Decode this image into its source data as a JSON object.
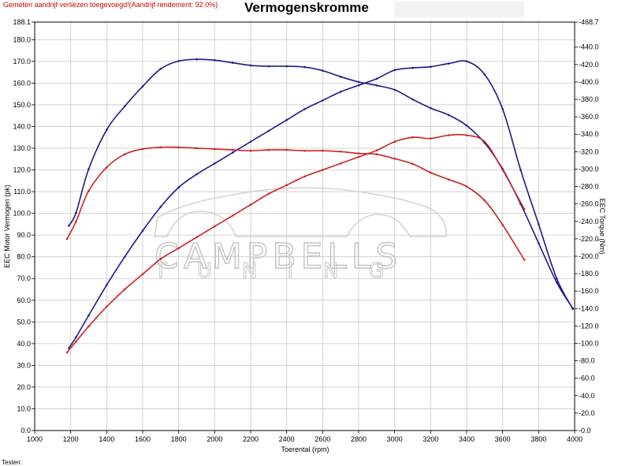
{
  "header": {
    "notice": "Gemeten aandrijf verliezen toegevoegd!(Aandrijf rendement: 92.0%)",
    "title": "Vermogenskromme"
  },
  "footer": {
    "text": "Testen:"
  },
  "watermark": {
    "line1": "CAMPBELLS",
    "line2": "TUNING"
  },
  "colors": {
    "series_blue": "#1a1a8c",
    "series_red": "#cc2222",
    "grid": "#c8c8c8"
  },
  "chart_data": {
    "type": "line",
    "xlabel": "Toerental (rpm)",
    "ylabel_left": "EEC Motor Vermogen (pk)",
    "ylabel_right": "EEC Torque (Nm)",
    "xlim": [
      1000,
      4000
    ],
    "ylim_left": [
      0,
      188.1
    ],
    "ylim_right": [
      0,
      468.7
    ],
    "x_ticks": [
      "1000",
      "1200",
      "1400",
      "1600",
      "1800",
      "2000",
      "2200",
      "2400",
      "2600",
      "2800",
      "3000",
      "3200",
      "3400",
      "3600",
      "3800",
      "4000"
    ],
    "y_left_ticks": [
      "0.0",
      "10.0",
      "20.0",
      "30.0",
      "40.0",
      "50.0",
      "60.0",
      "70.0",
      "80.0",
      "90.0",
      "100.0",
      "110.0",
      "120.0",
      "130.0",
      "140.0",
      "150.0",
      "160.0",
      "170.0",
      "180.0",
      "188.1"
    ],
    "y_right_ticks": [
      "0.0",
      "20.0",
      "40.0",
      "60.0",
      "80.0",
      "100.0",
      "120.0",
      "140.0",
      "160.0",
      "180.0",
      "200.0",
      "220.0",
      "240.0",
      "260.0",
      "280.0",
      "300.0",
      "320.0",
      "340.0",
      "360.0",
      "380.0",
      "400.0",
      "420.0",
      "440.0",
      "468.7"
    ],
    "grid": true,
    "series": [
      {
        "axis": "left",
        "color": "#1a1a8c",
        "x": [
          1190,
          1230,
          1300,
          1400,
          1500,
          1600,
          1700,
          1800,
          1900,
          2000,
          2100,
          2200,
          2300,
          2400,
          2500,
          2600,
          2700,
          2800,
          2900,
          3000,
          3100,
          3200,
          3300,
          3400,
          3500,
          3600,
          3700,
          3800,
          3900,
          3990
        ],
        "y": [
          38,
          43,
          53,
          67,
          80,
          92,
          103,
          112,
          118,
          123,
          128,
          133,
          138,
          143,
          148,
          152,
          156,
          159,
          162,
          166,
          167,
          167.5,
          169,
          170,
          164,
          148,
          120,
          95,
          70,
          56
        ]
      },
      {
        "axis": "right",
        "color": "#1a1a8c",
        "x": [
          1190,
          1230,
          1300,
          1400,
          1500,
          1600,
          1700,
          1800,
          1900,
          2000,
          2100,
          2200,
          2300,
          2400,
          2500,
          2600,
          2700,
          2800,
          2900,
          3000,
          3100,
          3200,
          3300,
          3400,
          3500,
          3600,
          3700,
          3800,
          3900,
          3990
        ],
        "y": [
          235,
          250,
          300,
          345,
          372,
          395,
          415,
          424,
          426,
          425,
          422,
          419,
          418,
          418,
          417,
          413,
          406,
          400,
          396,
          391,
          380,
          370,
          362,
          350,
          330,
          300,
          260,
          215,
          170,
          140
        ]
      },
      {
        "axis": "left",
        "color": "#cc2222",
        "x": [
          1180,
          1230,
          1300,
          1400,
          1500,
          1600,
          1700,
          1800,
          1900,
          2000,
          2100,
          2200,
          2300,
          2400,
          2500,
          2600,
          2700,
          2800,
          2900,
          3000,
          3100,
          3200,
          3300,
          3400,
          3500,
          3600,
          3720
        ],
        "y": [
          36,
          41,
          48,
          57,
          65,
          72,
          79,
          84,
          89,
          94,
          99,
          104,
          109,
          113,
          117,
          120,
          123,
          126,
          129,
          133,
          135,
          134.5,
          136,
          136,
          133,
          120,
          102
        ]
      },
      {
        "axis": "right",
        "color": "#cc2222",
        "x": [
          1180,
          1230,
          1300,
          1400,
          1500,
          1600,
          1700,
          1800,
          1900,
          2000,
          2100,
          2200,
          2300,
          2400,
          2500,
          2600,
          2700,
          2800,
          2900,
          3000,
          3100,
          3200,
          3300,
          3400,
          3500,
          3600,
          3720
        ],
        "y": [
          220,
          240,
          275,
          302,
          317,
          323,
          325,
          325,
          324,
          323,
          322,
          321,
          322,
          322,
          321,
          321,
          320,
          318,
          317,
          312,
          306,
          296,
          288,
          280,
          264,
          236,
          196
        ]
      }
    ]
  }
}
